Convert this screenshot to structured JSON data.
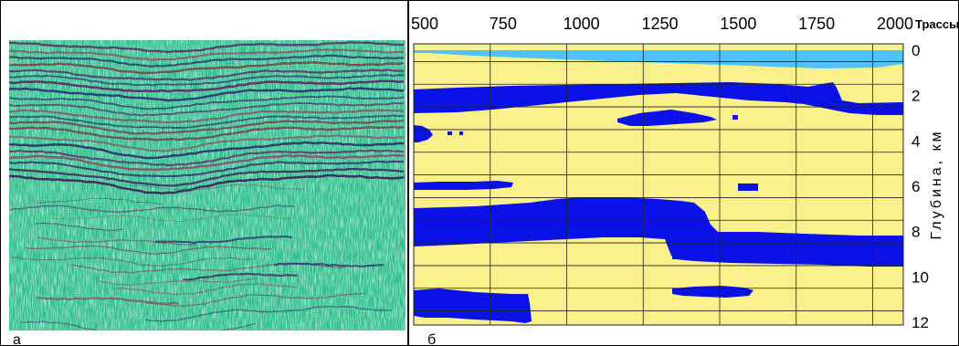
{
  "panel_a": {
    "label": "а"
  },
  "panel_b": {
    "label": "б",
    "x_ticks": [
      "500",
      "750",
      "1000",
      "1250",
      "1500",
      "1750",
      "2000"
    ],
    "x_unit": "Трассы",
    "y_ticks": [
      "0",
      "2",
      "4",
      "6",
      "8",
      "10",
      "12"
    ],
    "y_axis_label": "Глубина, км",
    "colors": {
      "background": "#F8F08A",
      "bodies": "#0A12E6",
      "sea": "#4FC3F7",
      "grid": "#222222"
    }
  }
}
